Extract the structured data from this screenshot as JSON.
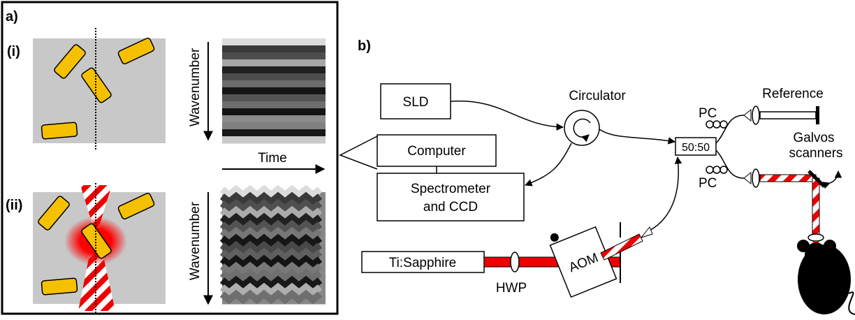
{
  "panel_a": {
    "label": "a)",
    "rows": [
      {
        "label": "(i)",
        "axis": "Wavenumber"
      },
      {
        "label": "(ii)",
        "axis": "Wavenumber"
      }
    ],
    "time_label": "Time"
  },
  "panel_b": {
    "label": "b)",
    "sld": "SLD",
    "circulator": "Circulator",
    "computer": "Computer",
    "spectrometer": [
      "Spectrometer",
      "and CCD"
    ],
    "coupler": "50:50",
    "reference": "Reference",
    "pc": [
      "PC",
      "PC"
    ],
    "galvos": [
      "Galvos",
      "scanners"
    ],
    "laser": "Ti:Sapphire",
    "hwp": "HWP",
    "aom": "AOM"
  }
}
